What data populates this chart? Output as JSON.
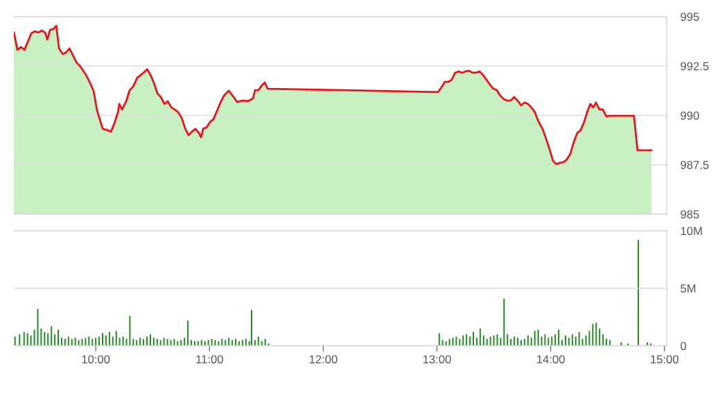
{
  "chart_data": [
    {
      "type": "area",
      "xlim": [
        9.28,
        15.02
      ],
      "ylim": [
        985,
        995
      ],
      "yticks": [
        985,
        {
          "value": 987.5,
          "label": "987.5"
        },
        990,
        {
          "value": 992.5,
          "label": "992.5"
        },
        995
      ],
      "tick_labels": "y",
      "grid": "y",
      "series": [
        {
          "type": "area",
          "color": "#c9f0c2",
          "x": [
            9.281,
            9.311,
            9.342,
            9.373,
            9.403,
            9.433,
            9.464,
            9.494,
            9.525,
            9.556,
            9.574,
            9.598,
            9.628,
            9.653,
            9.677,
            9.708,
            9.738,
            9.769,
            9.799,
            9.83,
            9.86,
            9.89,
            9.921,
            9.951,
            9.982,
            10.012,
            10.061,
            10.104,
            10.134,
            10.164,
            10.195,
            10.207,
            10.231,
            10.268,
            10.298,
            10.329,
            10.365,
            10.396,
            10.426,
            10.451,
            10.481,
            10.512,
            10.542,
            10.572,
            10.603,
            10.633,
            10.664,
            10.694,
            10.724,
            10.755,
            10.785,
            10.816,
            10.846,
            10.877,
            10.907,
            10.926,
            10.944,
            10.974,
            11.005,
            11.035,
            11.066,
            11.096,
            11.127,
            11.169,
            11.212,
            11.242,
            11.291,
            11.34,
            11.382,
            11.401,
            11.431,
            11.461,
            11.486,
            11.51,
            13.009,
            13.039,
            13.069,
            13.1,
            13.13,
            13.16,
            13.191,
            13.221,
            13.252,
            13.282,
            13.313,
            13.343,
            13.373,
            13.404,
            13.434,
            13.465,
            13.496,
            13.526,
            13.556,
            13.587,
            13.617,
            13.648,
            13.678,
            13.709,
            13.739,
            13.769,
            13.8,
            13.83,
            13.861,
            13.891,
            13.928,
            13.959,
            13.989,
            14.02,
            14.05,
            14.081,
            14.111,
            14.142,
            14.172,
            14.203,
            14.233,
            14.263,
            14.294,
            14.324,
            14.349,
            14.373,
            14.397,
            14.428,
            14.458,
            14.488,
            14.519,
            14.732,
            14.763,
            14.885
          ],
          "values": [
            994.19,
            993.32,
            993.46,
            993.32,
            993.74,
            994.16,
            994.26,
            994.19,
            994.3,
            994.19,
            993.84,
            994.33,
            994.37,
            994.54,
            993.39,
            993.11,
            993.18,
            993.39,
            993.04,
            992.68,
            992.51,
            992.26,
            991.98,
            991.63,
            991.21,
            990.23,
            989.32,
            989.25,
            989.18,
            989.6,
            990.16,
            990.58,
            990.3,
            990.72,
            991.28,
            991.46,
            991.91,
            992.05,
            992.19,
            992.33,
            992.05,
            991.63,
            991.11,
            990.93,
            990.58,
            990.72,
            990.4,
            990.3,
            990.16,
            989.88,
            989.35,
            989.0,
            989.18,
            989.32,
            989.11,
            988.89,
            989.32,
            989.39,
            989.67,
            989.81,
            990.23,
            990.65,
            991.0,
            991.25,
            990.93,
            990.68,
            990.75,
            990.72,
            990.86,
            991.28,
            991.28,
            991.53,
            991.67,
            991.35,
            991.18,
            991.42,
            991.7,
            991.7,
            991.81,
            992.16,
            992.23,
            992.16,
            992.23,
            992.26,
            992.16,
            992.16,
            992.23,
            992.05,
            991.81,
            991.56,
            991.35,
            991.28,
            991.0,
            990.82,
            990.75,
            990.75,
            990.93,
            990.75,
            990.51,
            990.65,
            990.58,
            990.4,
            990.16,
            989.7,
            989.32,
            988.82,
            988.3,
            987.7,
            987.53,
            987.6,
            987.63,
            987.77,
            988.05,
            988.65,
            989.11,
            989.25,
            989.67,
            990.23,
            990.58,
            990.4,
            990.65,
            990.3,
            990.3,
            989.95,
            989.98,
            989.98,
            988.23,
            988.23
          ]
        },
        {
          "type": "line",
          "color": "#e8141b",
          "x": [
            9.281,
            9.311,
            9.342,
            9.373,
            9.403,
            9.433,
            9.464,
            9.494,
            9.525,
            9.556,
            9.574,
            9.598,
            9.628,
            9.653,
            9.677,
            9.708,
            9.738,
            9.769,
            9.799,
            9.83,
            9.86,
            9.89,
            9.921,
            9.951,
            9.982,
            10.012,
            10.061,
            10.104,
            10.134,
            10.164,
            10.195,
            10.207,
            10.231,
            10.268,
            10.298,
            10.329,
            10.365,
            10.396,
            10.426,
            10.451,
            10.481,
            10.512,
            10.542,
            10.572,
            10.603,
            10.633,
            10.664,
            10.694,
            10.724,
            10.755,
            10.785,
            10.816,
            10.846,
            10.877,
            10.907,
            10.926,
            10.944,
            10.974,
            11.005,
            11.035,
            11.066,
            11.096,
            11.127,
            11.169,
            11.212,
            11.242,
            11.291,
            11.34,
            11.382,
            11.401,
            11.431,
            11.461,
            11.486,
            11.51,
            13.009,
            13.039,
            13.069,
            13.1,
            13.13,
            13.16,
            13.191,
            13.221,
            13.252,
            13.282,
            13.313,
            13.343,
            13.373,
            13.404,
            13.434,
            13.465,
            13.496,
            13.526,
            13.556,
            13.587,
            13.617,
            13.648,
            13.678,
            13.709,
            13.739,
            13.769,
            13.8,
            13.83,
            13.861,
            13.891,
            13.928,
            13.959,
            13.989,
            14.02,
            14.05,
            14.081,
            14.111,
            14.142,
            14.172,
            14.203,
            14.233,
            14.263,
            14.294,
            14.324,
            14.349,
            14.373,
            14.397,
            14.428,
            14.458,
            14.488,
            14.519,
            14.732,
            14.763,
            14.885
          ],
          "values": [
            994.19,
            993.32,
            993.46,
            993.32,
            993.74,
            994.16,
            994.26,
            994.19,
            994.3,
            994.19,
            993.84,
            994.33,
            994.37,
            994.54,
            993.39,
            993.11,
            993.18,
            993.39,
            993.04,
            992.68,
            992.51,
            992.26,
            991.98,
            991.63,
            991.21,
            990.23,
            989.32,
            989.25,
            989.18,
            989.6,
            990.16,
            990.58,
            990.3,
            990.72,
            991.28,
            991.46,
            991.91,
            992.05,
            992.19,
            992.33,
            992.05,
            991.63,
            991.11,
            990.93,
            990.58,
            990.72,
            990.4,
            990.3,
            990.16,
            989.88,
            989.35,
            989.0,
            989.18,
            989.32,
            989.11,
            988.89,
            989.32,
            989.39,
            989.67,
            989.81,
            990.23,
            990.65,
            991.0,
            991.25,
            990.93,
            990.68,
            990.75,
            990.72,
            990.86,
            991.28,
            991.28,
            991.53,
            991.67,
            991.35,
            991.18,
            991.42,
            991.7,
            991.7,
            991.81,
            992.16,
            992.23,
            992.16,
            992.23,
            992.26,
            992.16,
            992.16,
            992.23,
            992.05,
            991.81,
            991.56,
            991.35,
            991.28,
            991.0,
            990.82,
            990.75,
            990.75,
            990.93,
            990.75,
            990.51,
            990.65,
            990.58,
            990.4,
            990.16,
            989.7,
            989.32,
            988.82,
            988.3,
            987.7,
            987.53,
            987.6,
            987.63,
            987.77,
            988.05,
            988.65,
            989.11,
            989.25,
            989.67,
            990.23,
            990.58,
            990.4,
            990.65,
            990.3,
            990.3,
            989.95,
            989.98,
            989.98,
            988.23,
            988.23
          ]
        }
      ]
    },
    {
      "type": "bar",
      "xlim": [
        9.28,
        15.02
      ],
      "ylim": [
        0,
        10
      ],
      "yticks": [
        0,
        {
          "value": 5,
          "label": "5M"
        },
        {
          "value": 10,
          "label": "10M"
        }
      ],
      "xticks": [
        {
          "value": 10,
          "label": "10:00"
        },
        {
          "value": 11,
          "label": "11:00"
        },
        {
          "value": 12,
          "label": "12:00"
        },
        {
          "value": 13,
          "label": "13:00"
        },
        {
          "value": 14,
          "label": "14:00"
        },
        {
          "value": 15,
          "label": "15:00"
        }
      ],
      "grid": "y",
      "series": [
        {
          "color": "#1e8c1e",
          "x": [
            9.29,
            9.33,
            9.37,
            9.4,
            9.43,
            9.46,
            9.49,
            9.52,
            9.55,
            9.58,
            9.61,
            9.64,
            9.67,
            9.7,
            9.73,
            9.76,
            9.79,
            9.82,
            9.85,
            9.88,
            9.91,
            9.94,
            9.97,
            10.0,
            10.03,
            10.06,
            10.09,
            10.12,
            10.15,
            10.18,
            10.21,
            10.24,
            10.27,
            10.3,
            10.33,
            10.36,
            10.39,
            10.42,
            10.45,
            10.48,
            10.51,
            10.54,
            10.57,
            10.6,
            10.63,
            10.66,
            10.69,
            10.72,
            10.75,
            10.78,
            10.81,
            10.84,
            10.87,
            10.9,
            10.93,
            10.96,
            10.99,
            11.02,
            11.05,
            11.08,
            11.11,
            11.14,
            11.17,
            11.2,
            11.23,
            11.26,
            11.29,
            11.32,
            11.35,
            11.37,
            11.4,
            11.43,
            11.46,
            11.49,
            11.52,
            13.02,
            13.05,
            13.08,
            13.11,
            13.14,
            13.17,
            13.2,
            13.23,
            13.26,
            13.29,
            13.32,
            13.35,
            13.38,
            13.41,
            13.44,
            13.47,
            13.5,
            13.53,
            13.56,
            13.59,
            13.62,
            13.65,
            13.68,
            13.71,
            13.74,
            13.77,
            13.8,
            13.83,
            13.86,
            13.89,
            13.92,
            13.95,
            13.98,
            14.01,
            14.04,
            14.07,
            14.1,
            14.13,
            14.16,
            14.19,
            14.22,
            14.25,
            14.28,
            14.31,
            14.34,
            14.37,
            14.4,
            14.43,
            14.46,
            14.49,
            14.52,
            14.62,
            14.68,
            14.77,
            14.85,
            14.88
          ],
          "values": [
            0.8,
            1.0,
            1.2,
            1.1,
            0.9,
            1.4,
            3.2,
            1.5,
            1.2,
            1.1,
            1.7,
            1.0,
            1.4,
            0.7,
            0.6,
            0.8,
            0.6,
            0.7,
            0.5,
            0.6,
            0.7,
            0.8,
            0.6,
            0.7,
            0.8,
            1.1,
            0.9,
            1.2,
            0.8,
            1.3,
            0.7,
            0.8,
            0.6,
            2.6,
            0.6,
            0.5,
            0.7,
            0.6,
            0.8,
            1.0,
            0.7,
            0.6,
            0.5,
            0.7,
            0.6,
            0.5,
            0.6,
            0.4,
            0.5,
            0.7,
            2.2,
            0.5,
            0.4,
            0.4,
            0.5,
            0.4,
            0.5,
            0.6,
            0.5,
            0.4,
            0.6,
            0.5,
            0.7,
            0.5,
            0.6,
            0.4,
            0.5,
            0.6,
            0.4,
            3.1,
            0.5,
            0.8,
            0.4,
            0.6,
            0.2,
            1.1,
            0.5,
            0.4,
            0.6,
            0.7,
            0.8,
            0.6,
            0.9,
            1.0,
            0.8,
            1.2,
            0.7,
            1.5,
            0.9,
            0.6,
            0.8,
            0.9,
            1.0,
            0.7,
            4.1,
            1.0,
            0.6,
            0.8,
            0.7,
            0.5,
            0.6,
            0.9,
            0.7,
            1.3,
            1.4,
            0.8,
            1.0,
            0.7,
            0.8,
            1.0,
            1.4,
            0.5,
            0.9,
            0.7,
            1.0,
            0.8,
            1.2,
            0.6,
            0.9,
            1.3,
            1.9,
            2.0,
            1.5,
            1.0,
            0.6,
            0.5,
            0.3,
            0.2,
            9.2,
            0.3,
            0.2
          ]
        }
      ]
    }
  ]
}
